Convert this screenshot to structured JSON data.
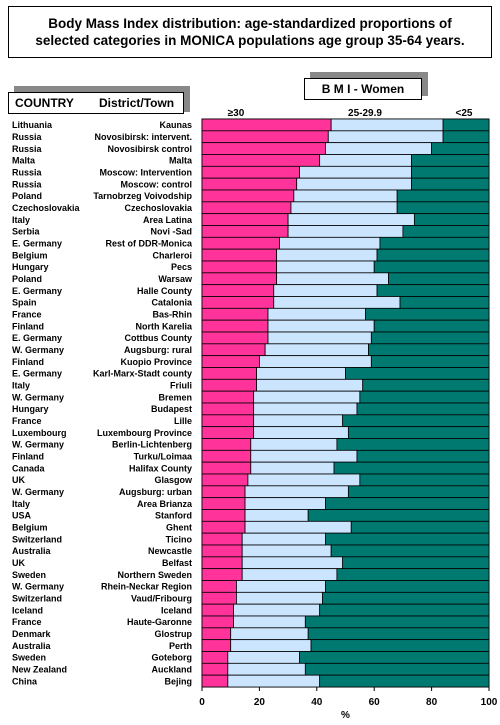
{
  "title": {
    "line1": "Body Mass Index distribution: age-standardized proportions of",
    "line2": "selected categories in MONICA populations age group 35-64 years."
  },
  "left_header": {
    "country": "COUNTRY",
    "district": "District/Town"
  },
  "panel_title": "B M I - Women",
  "colors": {
    "obese": "#ff3399",
    "overweight": "#cce5ff",
    "normal": "#007a70"
  },
  "chart_data": {
    "type": "bar",
    "orientation": "horizontal",
    "stacked": true,
    "title": "B M I - Women",
    "xlabel": "%",
    "xlim": [
      0,
      100
    ],
    "xticks": [
      "0",
      "20",
      "40",
      "60",
      "80",
      "100"
    ],
    "column_headers": [
      "≥30",
      "25-29.9",
      "<25"
    ],
    "rows": [
      {
        "country": "Lithuania",
        "district": "Kaunas"
      },
      {
        "country": "Russia",
        "district": "Novosibirsk: intervent."
      },
      {
        "country": "Russia",
        "district": "Novosibirsk control"
      },
      {
        "country": "Malta",
        "district": "Malta"
      },
      {
        "country": "Russia",
        "district": "Moscow: Intervention"
      },
      {
        "country": "Russia",
        "district": "Moscow: control"
      },
      {
        "country": "Poland",
        "district": "Tarnobrzeg Voivodship"
      },
      {
        "country": "Czechoslovakia",
        "district": "Czechoslovakia"
      },
      {
        "country": "Italy",
        "district": "Area Latina"
      },
      {
        "country": "Serbia",
        "district": "Novi -Sad"
      },
      {
        "country": "E. Germany",
        "district": "Rest of DDR-Monica"
      },
      {
        "country": "Belgium",
        "district": "Charleroi"
      },
      {
        "country": "Hungary",
        "district": "Pecs"
      },
      {
        "country": "Poland",
        "district": "Warsaw"
      },
      {
        "country": "E. Germany",
        "district": "Halle County"
      },
      {
        "country": "Spain",
        "district": "Catalonia"
      },
      {
        "country": "France",
        "district": "Bas-Rhin"
      },
      {
        "country": "Finland",
        "district": "North Karelia"
      },
      {
        "country": "E. Germany",
        "district": "Cottbus County"
      },
      {
        "country": "W. Germany",
        "district": "Augsburg: rural"
      },
      {
        "country": "Finland",
        "district": "Kuopio Province"
      },
      {
        "country": "E. Germany",
        "district": "Karl-Marx-Stadt county"
      },
      {
        "country": "Italy",
        "district": "Friuli"
      },
      {
        "country": "W. Germany",
        "district": "Bremen"
      },
      {
        "country": "Hungary",
        "district": "Budapest"
      },
      {
        "country": "France",
        "district": "Lille"
      },
      {
        "country": "Luxembourg",
        "district": "Luxembourg Province"
      },
      {
        "country": "W. Germany",
        "district": "Berlin-Lichtenberg"
      },
      {
        "country": "Finland",
        "district": "Turku/Loimaa"
      },
      {
        "country": "Canada",
        "district": "Halifax County"
      },
      {
        "country": "UK",
        "district": "Glasgow"
      },
      {
        "country": "W. Germany",
        "district": "Augsburg: urban"
      },
      {
        "country": "Italy",
        "district": "Area Brianza"
      },
      {
        "country": "USA",
        "district": "Stanford"
      },
      {
        "country": "Belgium",
        "district": "Ghent"
      },
      {
        "country": "Switzerland",
        "district": "Ticino"
      },
      {
        "country": "Australia",
        "district": "Newcastle"
      },
      {
        "country": "UK",
        "district": "Belfast"
      },
      {
        "country": "Sweden",
        "district": "Northern Sweden"
      },
      {
        "country": "W. Germany",
        "district": "Rhein-Neckar Region"
      },
      {
        "country": "Switzerland",
        "district": "Vaud/Fribourg"
      },
      {
        "country": "Iceland",
        "district": "Iceland"
      },
      {
        "country": "France",
        "district": "Haute-Garonne"
      },
      {
        "country": "Denmark",
        "district": "Glostrup"
      },
      {
        "country": "Australia",
        "district": "Perth"
      },
      {
        "country": "Sweden",
        "district": "Goteborg"
      },
      {
        "country": "New Zealand",
        "district": "Auckland"
      },
      {
        "country": "China",
        "district": "Bejing"
      }
    ],
    "series": [
      {
        "name": "≥30",
        "values": [
          45,
          44,
          43,
          41,
          34,
          33,
          32,
          31,
          30,
          30,
          27,
          26,
          26,
          26,
          25,
          25,
          23,
          23,
          23,
          22,
          20,
          19,
          19,
          18,
          18,
          18,
          18,
          17,
          17,
          17,
          16,
          15,
          15,
          15,
          15,
          14,
          14,
          14,
          14,
          12,
          12,
          11,
          11,
          10,
          10,
          9,
          9,
          9
        ]
      },
      {
        "name": "25-29.9",
        "values": [
          39,
          40,
          37,
          32,
          39,
          40,
          36,
          37,
          44,
          40,
          35,
          35,
          34,
          39,
          36,
          44,
          34,
          37,
          36,
          36,
          39,
          31,
          37,
          37,
          36,
          31,
          33,
          30,
          37,
          29,
          39,
          36,
          28,
          22,
          37,
          29,
          31,
          35,
          33,
          31,
          30,
          30,
          25,
          27,
          28,
          25,
          27,
          32
        ]
      },
      {
        "name": "<25",
        "values": [
          16,
          16,
          20,
          27,
          27,
          27,
          32,
          32,
          26,
          30,
          38,
          39,
          40,
          35,
          39,
          31,
          43,
          40,
          41,
          42,
          41,
          50,
          44,
          45,
          46,
          51,
          49,
          53,
          46,
          54,
          45,
          49,
          57,
          63,
          48,
          57,
          55,
          51,
          53,
          57,
          58,
          59,
          64,
          63,
          62,
          66,
          64,
          59
        ]
      }
    ]
  }
}
